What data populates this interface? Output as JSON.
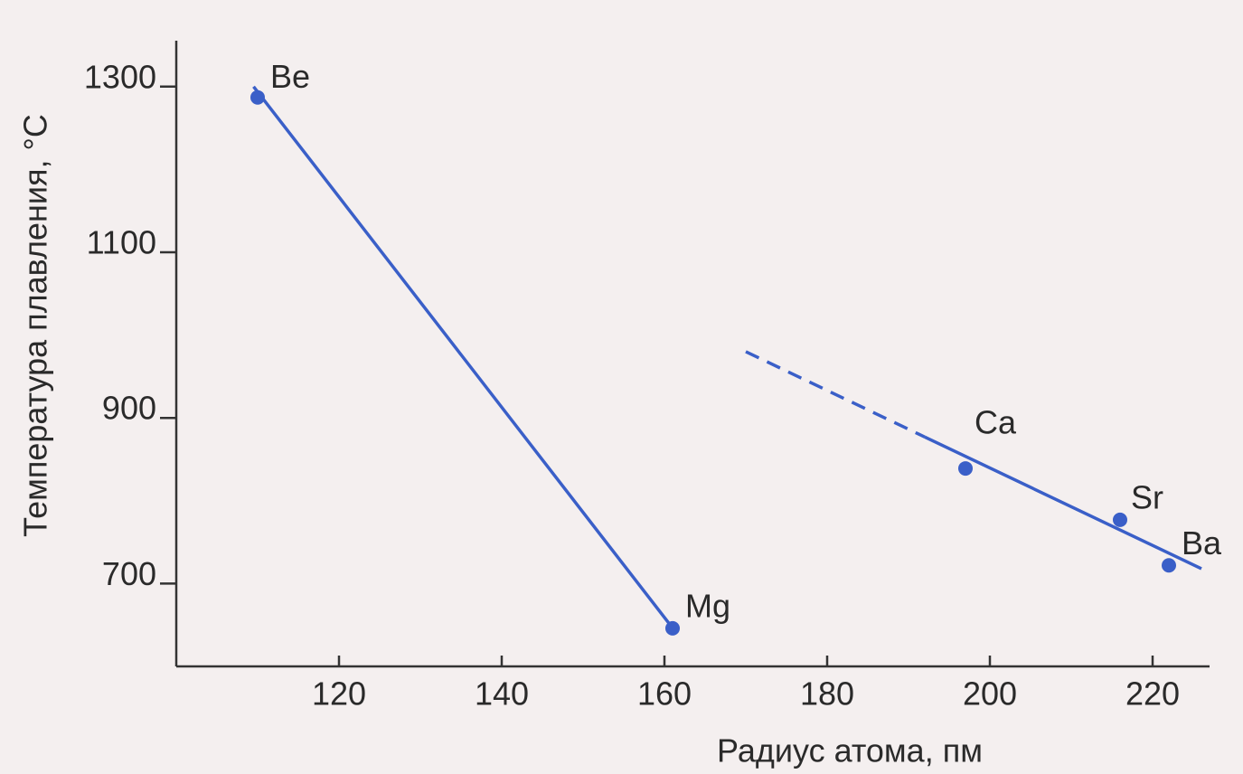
{
  "chart_data": {
    "type": "scatter",
    "x_label": "Радиус атома, пм",
    "y_label": "Температура плавления, °C",
    "labels": [
      "Be",
      "Mg",
      "Ca",
      "Sr",
      "Ba"
    ],
    "x": [
      110,
      161,
      197,
      216,
      222
    ],
    "values": [
      1287,
      646,
      839,
      777,
      722
    ],
    "color": "#3a5fc8",
    "lines": [
      {
        "x": [
          109.5,
          161.5
        ],
        "values": [
          1300,
          640
        ],
        "style": "solid"
      },
      {
        "x": [
          170,
          192
        ],
        "values": [
          980,
          877
        ],
        "style": "dashed"
      },
      {
        "x": [
          192,
          226
        ],
        "values": [
          877,
          718
        ],
        "style": "solid"
      }
    ],
    "xlim": [
      100,
      226
    ],
    "ylim": [
      600,
      1350
    ],
    "xticks": [
      120,
      140,
      160,
      180,
      200,
      220
    ],
    "yticks": [
      700,
      900,
      1100,
      1300
    ]
  }
}
